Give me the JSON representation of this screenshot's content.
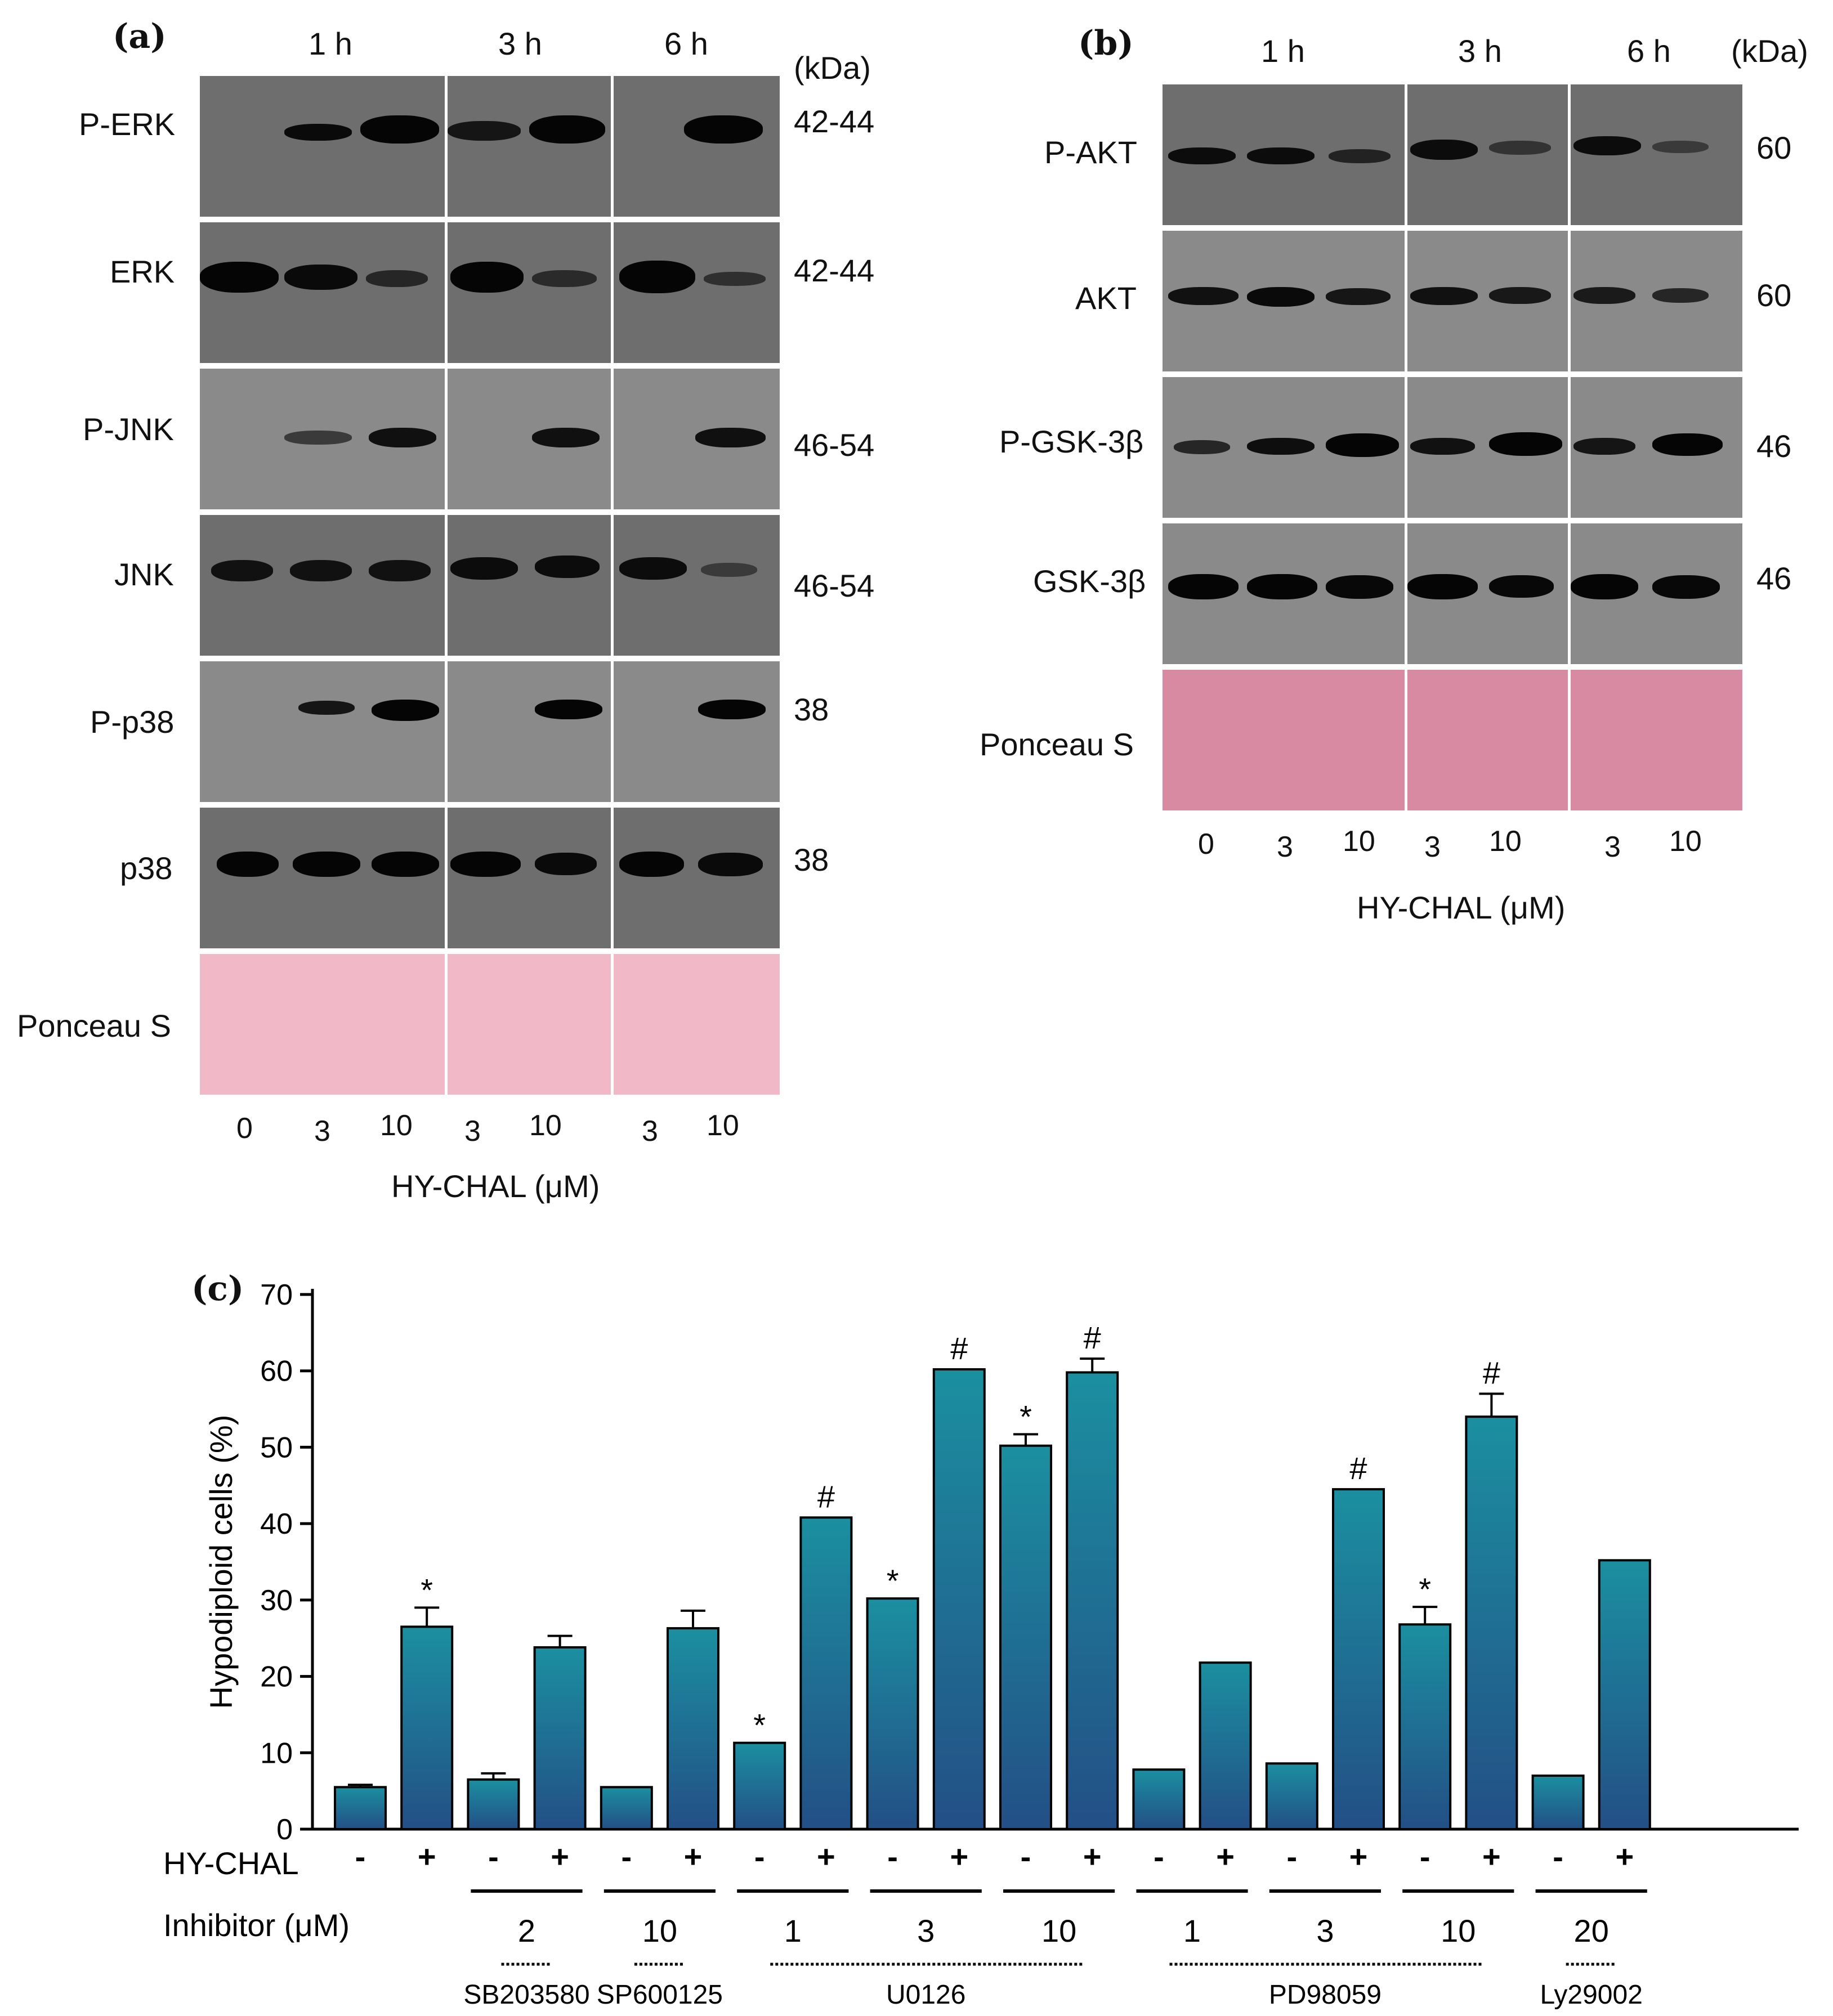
{
  "panel_a": {
    "panel_label": "(a)",
    "time_labels": [
      "1 h",
      "3 h",
      "6 h"
    ],
    "kda_header": "(kDa)",
    "rows": [
      {
        "name": "P-ERK",
        "kda": "42-44"
      },
      {
        "name": "ERK",
        "kda": "42-44"
      },
      {
        "name": "P-JNK",
        "kda": "46-54"
      },
      {
        "name": "JNK",
        "kda": "46-54"
      },
      {
        "name": "P-p38",
        "kda": "38"
      },
      {
        "name": "p38",
        "kda": "38"
      },
      {
        "name": "Ponceau S",
        "kda": ""
      }
    ],
    "lanes": [
      "0",
      "3",
      "10",
      "3",
      "10",
      "3",
      "10"
    ],
    "xlabel": "HY-CHAL (μM)"
  },
  "panel_b": {
    "panel_label": "(b)",
    "time_labels": [
      "1 h",
      "3 h",
      "6 h"
    ],
    "kda_header": "(kDa)",
    "rows": [
      {
        "name": "P-AKT",
        "kda": "60"
      },
      {
        "name": "AKT",
        "kda": "60"
      },
      {
        "name": "P-GSK-3β",
        "kda": "46"
      },
      {
        "name": "GSK-3β",
        "kda": "46"
      },
      {
        "name": "Ponceau S",
        "kda": ""
      }
    ],
    "lanes": [
      "0",
      "3",
      "10",
      "3",
      "10",
      "3",
      "10"
    ],
    "xlabel": "HY-CHAL (μM)"
  },
  "panel_c": {
    "panel_label": "(c)",
    "hy_chal_row_label": "HY-CHAL",
    "inhibitor_row_label": "Inhibitor (μM)",
    "inhibitor_groups": [
      {
        "name": "SB203580",
        "doses": [
          "2"
        ]
      },
      {
        "name": "SP600125",
        "doses": [
          "10"
        ]
      },
      {
        "name": "U0126",
        "doses": [
          "1",
          "3",
          "10"
        ]
      },
      {
        "name": "PD98059",
        "doses": [
          "1",
          "3",
          "10"
        ]
      },
      {
        "name": "Ly29002",
        "doses": [
          "20"
        ]
      }
    ]
  },
  "chart_data": {
    "type": "bar",
    "title": "",
    "xlabel": "",
    "ylabel": "Hypodiploid cells (%)",
    "ylim": [
      0,
      70
    ],
    "yticks": [
      "0",
      "10",
      "20",
      "30",
      "40",
      "50",
      "60",
      "70"
    ],
    "bar_color": "#1e7f93",
    "bars": [
      {
        "hy_chal": "-",
        "dose": "",
        "value": 5.5,
        "err": 0.3,
        "sig": ""
      },
      {
        "hy_chal": "+",
        "dose": "",
        "value": 26.5,
        "err": 2.5,
        "sig": "*"
      },
      {
        "hy_chal": "-",
        "dose": "2",
        "value": 6.5,
        "err": 0.8,
        "sig": ""
      },
      {
        "hy_chal": "+",
        "dose": "2",
        "value": 23.8,
        "err": 1.5,
        "sig": ""
      },
      {
        "hy_chal": "-",
        "dose": "10",
        "value": 5.5,
        "err": 0,
        "sig": ""
      },
      {
        "hy_chal": "+",
        "dose": "10",
        "value": 26.3,
        "err": 2.3,
        "sig": ""
      },
      {
        "hy_chal": "-",
        "dose": "1",
        "value": 11.3,
        "err": 0,
        "sig": "*"
      },
      {
        "hy_chal": "+",
        "dose": "1",
        "value": 40.8,
        "err": 0,
        "sig": "#"
      },
      {
        "hy_chal": "-",
        "dose": "3",
        "value": 30.2,
        "err": 0,
        "sig": "*"
      },
      {
        "hy_chal": "+",
        "dose": "3",
        "value": 60.2,
        "err": 0,
        "sig": "#"
      },
      {
        "hy_chal": "-",
        "dose": "10",
        "value": 50.2,
        "err": 1.5,
        "sig": "*"
      },
      {
        "hy_chal": "+",
        "dose": "10",
        "value": 59.8,
        "err": 1.8,
        "sig": "#"
      },
      {
        "hy_chal": "-",
        "dose": "1",
        "value": 7.8,
        "err": 0,
        "sig": ""
      },
      {
        "hy_chal": "+",
        "dose": "1",
        "value": 21.8,
        "err": 0,
        "sig": ""
      },
      {
        "hy_chal": "-",
        "dose": "3",
        "value": 8.6,
        "err": 0,
        "sig": ""
      },
      {
        "hy_chal": "+",
        "dose": "3",
        "value": 44.5,
        "err": 0,
        "sig": "#"
      },
      {
        "hy_chal": "-",
        "dose": "10",
        "value": 26.8,
        "err": 2.3,
        "sig": "*"
      },
      {
        "hy_chal": "+",
        "dose": "10",
        "value": 54.0,
        "err": 3.0,
        "sig": "#"
      },
      {
        "hy_chal": "-",
        "dose": "20",
        "value": 7.0,
        "err": 0,
        "sig": ""
      },
      {
        "hy_chal": "+",
        "dose": "20",
        "value": 35.2,
        "err": 0,
        "sig": ""
      }
    ]
  }
}
